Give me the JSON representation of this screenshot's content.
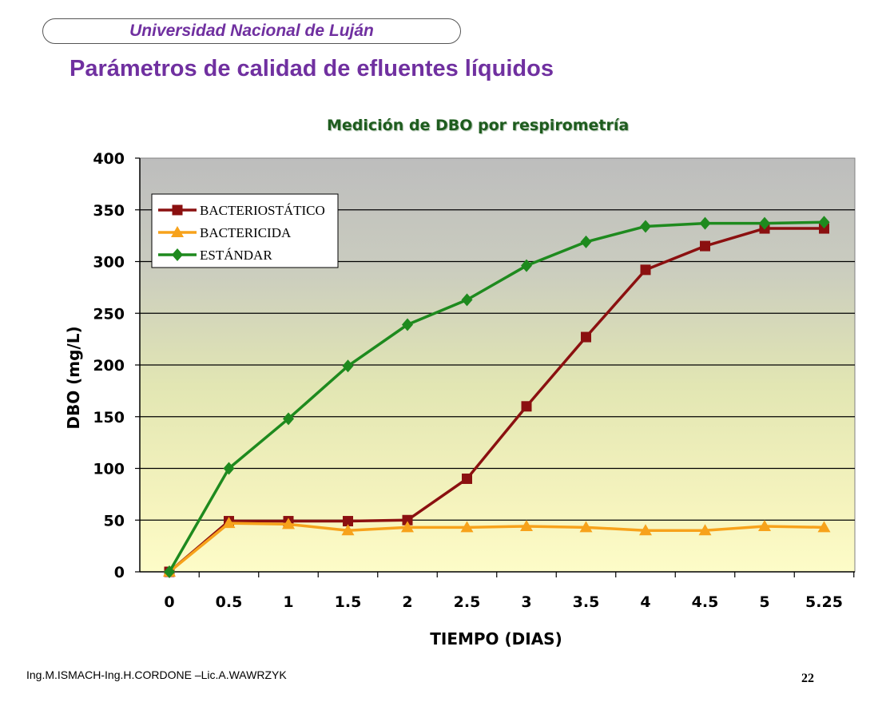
{
  "header": {
    "institution": "Universidad Nacional de Luján",
    "title": "Parámetros de calidad de efluentes líquidos"
  },
  "footer": {
    "authors": "Ing.M.ISMACH-Ing.H.CORDONE –Lic.A.WAWRZYK",
    "page_number": "22"
  },
  "chart_data": {
    "type": "line",
    "title": "Medición de DBO por respirometría",
    "xlabel": "TIEMPO (DIAS)",
    "ylabel": "DBO (mg/L)",
    "x": [
      "0",
      "0.5",
      "1",
      "1.5",
      "2",
      "2.5",
      "3",
      "3.5",
      "4",
      "4.5",
      "5",
      "5.25"
    ],
    "ylim": [
      0,
      400
    ],
    "yticks": [
      0,
      50,
      100,
      150,
      200,
      250,
      300,
      350,
      400
    ],
    "grid": true,
    "legend_position": "top-left",
    "series": [
      {
        "name": "BACTERIOSTÁTICO",
        "color": "#8b1010",
        "marker": "square",
        "values": [
          0,
          49,
          49,
          49,
          50,
          90,
          160,
          227,
          292,
          315,
          332,
          332
        ]
      },
      {
        "name": "BACTERICIDA",
        "color": "#f7a21b",
        "marker": "triangle",
        "values": [
          0,
          47,
          46,
          40,
          43,
          43,
          44,
          43,
          40,
          40,
          44,
          43
        ]
      },
      {
        "name": "ESTÁNDAR",
        "color": "#1e8a1e",
        "marker": "diamond",
        "values": [
          0,
          100,
          148,
          199,
          239,
          263,
          296,
          319,
          334,
          337,
          337,
          338
        ]
      }
    ]
  }
}
